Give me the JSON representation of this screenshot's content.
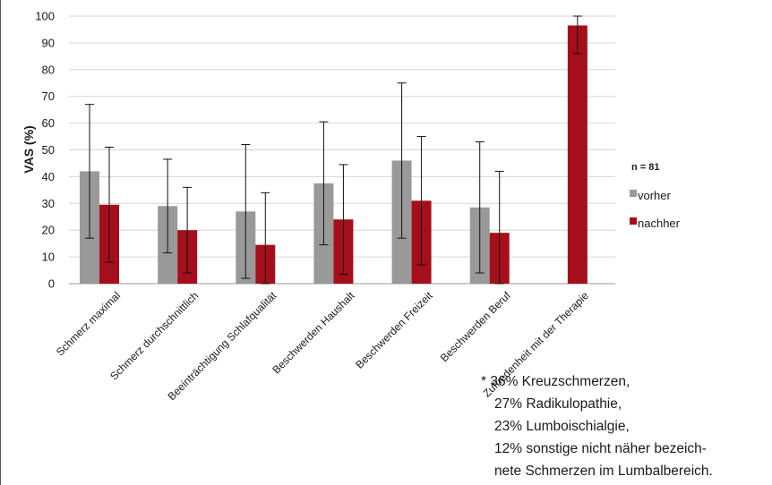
{
  "chart_data": {
    "type": "bar",
    "title": "",
    "xlabel": "",
    "ylabel": "VAS (%)",
    "ylim": [
      0,
      100
    ],
    "yticks": [
      0,
      10,
      20,
      30,
      40,
      50,
      60,
      70,
      80,
      90,
      100
    ],
    "grid": true,
    "legend_placement": "right",
    "legend_note": "n = 81",
    "categories": [
      "Schmerz maximal",
      "Schmerz durchschnittlich",
      "Beeinträchtigung Schlafqualität",
      "Beschwerden Haushalt",
      "Beschwerden Freizeit",
      "Beschwerden Beruf",
      "Zufriedenheit mit der Therapie"
    ],
    "series": [
      {
        "name": "vorher",
        "color": "#999999",
        "values": [
          42,
          29,
          27,
          37.5,
          46,
          28.5,
          null
        ],
        "error": [
          25,
          17.5,
          25,
          23,
          29,
          24.5,
          null
        ]
      },
      {
        "name": "nachher",
        "color": "#a50e1b",
        "values": [
          29.5,
          20,
          14.5,
          24,
          31,
          19,
          96.5
        ],
        "error": [
          21.5,
          16,
          19.5,
          20.5,
          24,
          23,
          10.5
        ]
      }
    ]
  },
  "footnote": {
    "lines": [
      "* 36% Kreuzschmerzen,",
      "27% Radikulopathie,",
      "23% Lumboischialgie,",
      "12% sonstige nicht näher bezeich-",
      "nete Schmerzen im Lumbalbereich."
    ]
  }
}
